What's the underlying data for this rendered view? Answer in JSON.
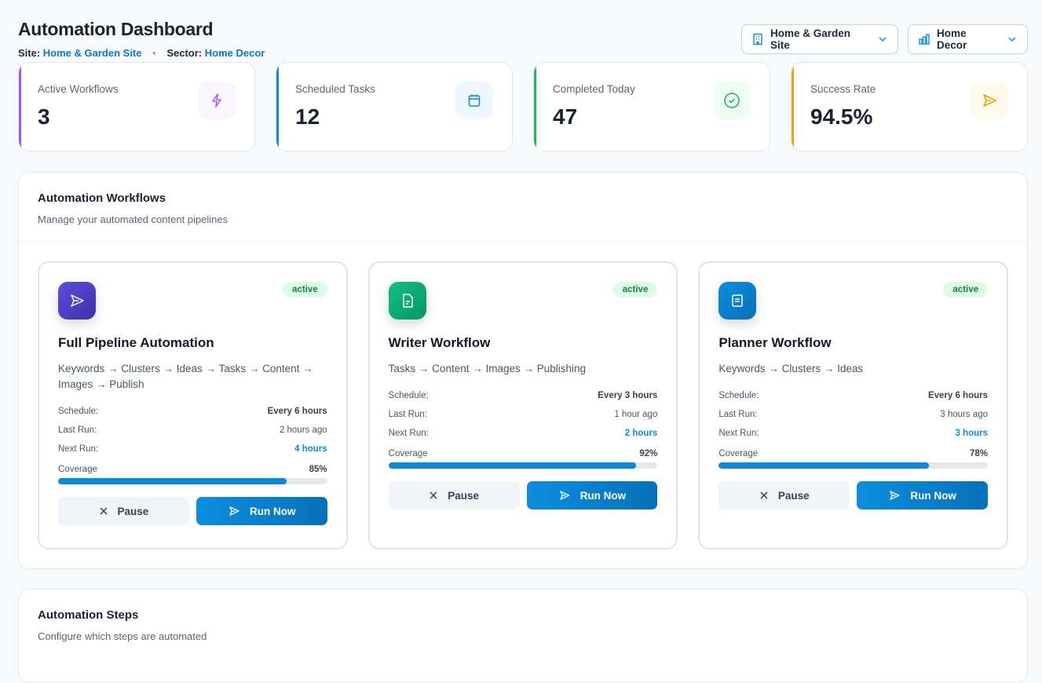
{
  "header": {
    "title": "Automation Dashboard",
    "site_label": "Site:",
    "site_value": "Home & Garden Site",
    "sector_label": "Sector:",
    "sector_value": "Home Decor",
    "separator": "•"
  },
  "selectors": {
    "site": {
      "value": "Home & Garden Site",
      "icon": "building-icon"
    },
    "sector": {
      "value": "Home Decor",
      "icon": "bar-chart-icon"
    }
  },
  "stats": [
    {
      "label": "Active Workflows",
      "value": "3",
      "color": "#a855f7",
      "icon": "bolt-icon"
    },
    {
      "label": "Scheduled Tasks",
      "value": "12",
      "color": "#0b8ad9",
      "icon": "calendar-icon"
    },
    {
      "label": "Completed Today",
      "value": "47",
      "color": "#22b45e",
      "icon": "check-circle-icon"
    },
    {
      "label": "Success Rate",
      "value": "94.5%",
      "color": "#f59e0b",
      "icon": "send-icon"
    }
  ],
  "workflows_panel": {
    "title": "Automation Workflows",
    "subtitle": "Manage your automated content pipelines"
  },
  "labels": {
    "schedule": "Schedule:",
    "last_run": "Last Run:",
    "next_run": "Next Run:",
    "coverage": "Coverage",
    "pause": "Pause",
    "run_now": "Run Now"
  },
  "workflows": [
    {
      "name": "Full Pipeline Automation",
      "status": "active",
      "steps": "Keywords → Clusters → Ideas → Tasks → Content → Images → Publish",
      "schedule": "Every 6 hours",
      "last_run": "2 hours ago",
      "next_run": "4 hours",
      "coverage": 85,
      "coverage_label": "85%",
      "icon": "send-icon"
    },
    {
      "name": "Writer Workflow",
      "status": "active",
      "steps": "Tasks → Content → Images → Publishing",
      "schedule": "Every 3 hours",
      "last_run": "1 hour ago",
      "next_run": "2 hours",
      "coverage": 92,
      "coverage_label": "92%",
      "icon": "document-icon"
    },
    {
      "name": "Planner Workflow",
      "status": "active",
      "steps": "Keywords → Clusters → Ideas",
      "schedule": "Every 6 hours",
      "last_run": "3 hours ago",
      "next_run": "3 hours",
      "coverage": 78,
      "coverage_label": "78%",
      "icon": "list-icon"
    }
  ],
  "steps_panel": {
    "title": "Automation Steps",
    "subtitle": "Configure which steps are automated"
  }
}
